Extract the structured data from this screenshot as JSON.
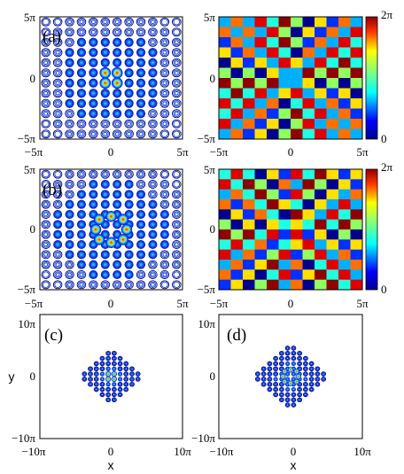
{
  "figure": {
    "panels": [
      {
        "id": "a",
        "label": "(a)",
        "kind": "contour-intensity"
      },
      {
        "id": "a-phase",
        "label": "",
        "kind": "phase"
      },
      {
        "id": "b",
        "label": "(b)",
        "kind": "contour-intensity"
      },
      {
        "id": "b-phase",
        "label": "",
        "kind": "phase"
      },
      {
        "id": "c",
        "label": "(c)",
        "kind": "contour-intensity"
      },
      {
        "id": "d",
        "label": "(d)",
        "kind": "contour-intensity"
      }
    ],
    "ticks_5pi": [
      "−5π",
      "0",
      "5π"
    ],
    "ticks_10pi": [
      "−10π",
      "0",
      "10π"
    ],
    "colorbar_ticks": [
      "0",
      "2π"
    ],
    "xlabel": "x",
    "ylabel": "y"
  },
  "chart_data": [
    {
      "type": "heatmap",
      "panel": "(a)",
      "quantity": "intensity",
      "x_range": [
        "-5π",
        "5π"
      ],
      "y_range": [
        "-5π",
        "5π"
      ],
      "pattern": "4-peak vortex ring at center on square lattice"
    },
    {
      "type": "heatmap",
      "panel": "(a) phase",
      "quantity": "phase",
      "x_range": [
        "-5π",
        "5π"
      ],
      "y_range": [
        "-5π",
        "5π"
      ],
      "colorbar": [
        0,
        "2π"
      ]
    },
    {
      "type": "heatmap",
      "panel": "(b)",
      "quantity": "intensity",
      "x_range": [
        "-5π",
        "5π"
      ],
      "y_range": [
        "-5π",
        "5π"
      ],
      "pattern": "8-peak ring on square lattice"
    },
    {
      "type": "heatmap",
      "panel": "(b) phase",
      "quantity": "phase",
      "x_range": [
        "-5π",
        "5π"
      ],
      "y_range": [
        "-5π",
        "5π"
      ],
      "colorbar": [
        0,
        "2π"
      ]
    },
    {
      "type": "heatmap",
      "panel": "(c)",
      "quantity": "intensity",
      "x_range": [
        "-10π",
        "10π"
      ],
      "y_range": [
        "-10π",
        "10π"
      ],
      "xlabel": "x",
      "ylabel": "y"
    },
    {
      "type": "heatmap",
      "panel": "(d)",
      "quantity": "intensity",
      "x_range": [
        "-10π",
        "10π"
      ],
      "y_range": [
        "-10π",
        "10π"
      ],
      "xlabel": "x"
    }
  ],
  "colors": {
    "contour_dark": "#00007a",
    "contour_mid": "#0b3fd6",
    "peak": "#ff2a00",
    "frame": "#000000"
  }
}
